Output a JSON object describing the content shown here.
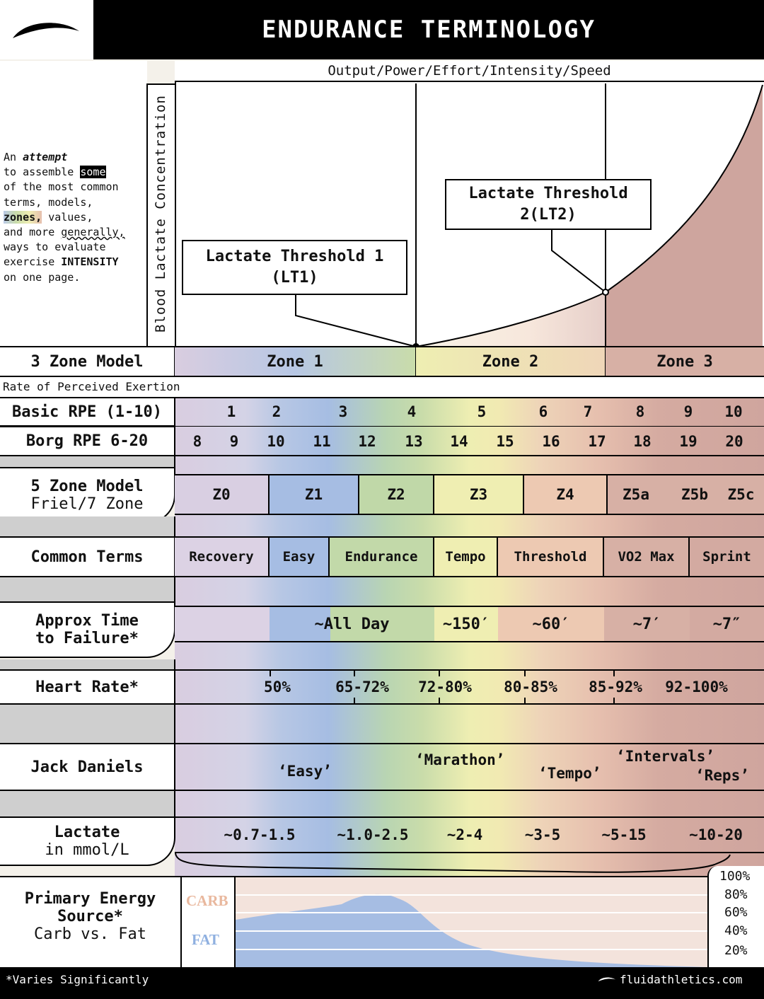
{
  "header": {
    "title": "ENDURANCE TERMINOLOGY",
    "logo_icon": "swoosh-logo-icon"
  },
  "intro": {
    "line1_pre": "An ",
    "line1_em": "attempt",
    "line2_pre": "to assemble ",
    "line2_hl": "some",
    "line3": "of the most common",
    "line4": "terms, models,",
    "line5_hl": "zones,",
    "line5_post": " values,",
    "line6_pre": "and more ",
    "line6_ul": "generally,",
    "line7": "ways to evaluate",
    "line8_pre": "exercise ",
    "line8_b": "INTENSITY",
    "line9": "on one page."
  },
  "graph": {
    "x_label": "Output/Power/Effort/Intensity/Speed",
    "y_label": "Blood Lactate Concentration",
    "lt1_line1": "Lactate Threshold 1",
    "lt1_line2": "(LT1)",
    "lt2_line1": "Lactate Threshold",
    "lt2_line2": "2(LT2)"
  },
  "three_zone": {
    "label": "3 Zone Model",
    "zones": [
      "Zone 1",
      "Zone 2",
      "Zone 3"
    ]
  },
  "rpe_caption": "Rate of Perceived Exertion",
  "basic_rpe": {
    "label": "Basic RPE (1-10)",
    "values": [
      "1",
      "2",
      "3",
      "4",
      "5",
      "6",
      "7",
      "8",
      "9",
      "10"
    ]
  },
  "borg_rpe": {
    "label": "Borg RPE 6-20",
    "values": [
      "8",
      "9",
      "10",
      "11",
      "12",
      "13",
      "14",
      "15",
      "16",
      "17",
      "18",
      "19",
      "20"
    ]
  },
  "five_zone": {
    "label1": "5 Zone Model",
    "label2": "Friel/7 Zone",
    "zones": [
      "Z0",
      "Z1",
      "Z2",
      "Z3",
      "Z4",
      "Z5a",
      "Z5b",
      "Z5c"
    ]
  },
  "common_terms": {
    "label": "Common Terms",
    "terms": [
      "Recovery",
      "Easy",
      "Endurance",
      "Tempo",
      "Threshold",
      "VO2 Max",
      "Sprint"
    ]
  },
  "time_to_failure": {
    "label1": "Approx Time",
    "label2": "to Failure*",
    "values": [
      "~All Day",
      "~150′",
      "~60′",
      "~7′",
      "~7″"
    ]
  },
  "heart_rate": {
    "label": "Heart Rate*",
    "values": [
      "50%",
      "65-72%",
      "72-80%",
      "80-85%",
      "85-92%",
      "92-100%"
    ]
  },
  "jack_daniels": {
    "label": "Jack Daniels",
    "easy": "‘Easy’",
    "marathon": "‘Marathon’",
    "tempo": "‘Tempo’",
    "intervals": "‘Intervals’",
    "reps": "‘Reps’"
  },
  "lactate": {
    "label1": "Lactate",
    "label2": "in mmol/L",
    "values": [
      "~0.7-1.5",
      "~1.0-2.5",
      "~2-4",
      "~3-5",
      "~5-15",
      "~10-20"
    ]
  },
  "energy": {
    "label1": "Primary Energy",
    "label2": "Source*",
    "label3": "Carb vs. Fat",
    "carb": "CARB",
    "fat": "FAT",
    "percents": [
      "100%",
      "80%",
      "60%",
      "40%",
      "20%"
    ]
  },
  "footer": {
    "note": "*Varies Significantly",
    "site": "fluidathletics.com"
  },
  "colors": {
    "zone1": "#a6bde3",
    "zone2": "#eeeeb2",
    "zone3": "#cfa59e",
    "carb": "#e9b89e",
    "fat": "#8fb0e0"
  }
}
